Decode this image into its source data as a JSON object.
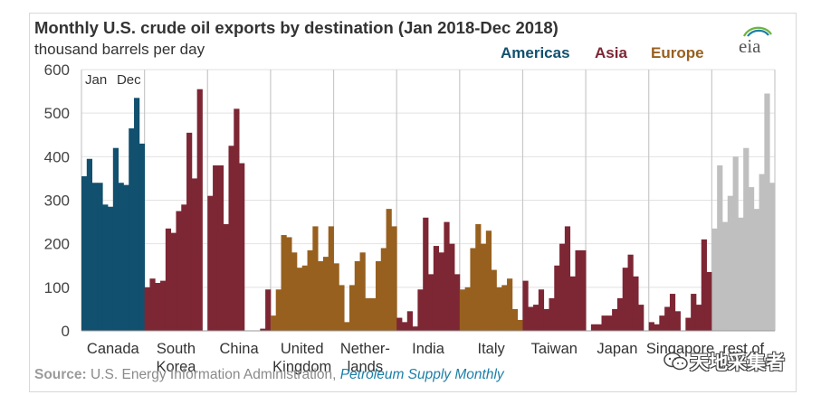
{
  "chart_data": {
    "type": "bar",
    "title": "Monthly U.S. crude oil exports by destination (Jan 2018-Dec 2018)",
    "ylabel": "thousand barrels per day",
    "ylim": [
      0,
      600
    ],
    "yticks": [
      0,
      100,
      200,
      300,
      400,
      500,
      600
    ],
    "month_labels": [
      "Jan",
      "Dec"
    ],
    "regions": [
      {
        "name": "Americas",
        "color": "#11506e"
      },
      {
        "name": "Asia",
        "color": "#7d2634"
      },
      {
        "name": "Europe",
        "color": "#97601f"
      }
    ],
    "series": [
      {
        "name": "Canada",
        "label_lines": [
          "Canada"
        ],
        "region": "Americas",
        "color": "#11506e",
        "values": [
          355,
          395,
          340,
          340,
          290,
          285,
          420,
          340,
          335,
          465,
          535,
          430
        ]
      },
      {
        "name": "South Korea",
        "label_lines": [
          "South",
          "Korea"
        ],
        "region": "Asia",
        "color": "#7d2634",
        "values": [
          100,
          120,
          110,
          115,
          235,
          225,
          275,
          290,
          455,
          350,
          555,
          0
        ]
      },
      {
        "name": "China",
        "label_lines": [
          "China"
        ],
        "region": "Asia",
        "color": "#7d2634",
        "values": [
          310,
          380,
          380,
          245,
          425,
          510,
          385,
          0,
          0,
          0,
          5,
          95
        ]
      },
      {
        "name": "United Kingdom",
        "label_lines": [
          "United",
          "Kingdom"
        ],
        "region": "Europe",
        "color": "#97601f",
        "values": [
          35,
          95,
          220,
          215,
          180,
          145,
          150,
          185,
          240,
          160,
          170,
          240
        ]
      },
      {
        "name": "Netherlands",
        "label_lines": [
          "Nether-",
          "lands"
        ],
        "region": "Europe",
        "color": "#97601f",
        "values": [
          155,
          105,
          20,
          105,
          160,
          180,
          75,
          75,
          160,
          190,
          280,
          240
        ]
      },
      {
        "name": "India",
        "label_lines": [
          "India"
        ],
        "region": "Asia",
        "color": "#7d2634",
        "values": [
          30,
          20,
          45,
          10,
          95,
          260,
          130,
          195,
          180,
          250,
          200,
          130
        ]
      },
      {
        "name": "Italy",
        "label_lines": [
          "Italy"
        ],
        "region": "Europe",
        "color": "#97601f",
        "values": [
          95,
          100,
          190,
          245,
          200,
          230,
          140,
          100,
          105,
          120,
          50,
          25
        ]
      },
      {
        "name": "Taiwan",
        "label_lines": [
          "Taiwan"
        ],
        "region": "Asia",
        "color": "#7d2634",
        "values": [
          115,
          55,
          60,
          95,
          50,
          75,
          150,
          200,
          240,
          125,
          185,
          185
        ]
      },
      {
        "name": "Japan",
        "label_lines": [
          "Japan"
        ],
        "region": "Asia",
        "color": "#7d2634",
        "values": [
          0,
          15,
          15,
          35,
          35,
          50,
          75,
          145,
          175,
          125,
          60,
          0
        ]
      },
      {
        "name": "Singapore",
        "label_lines": [
          "Singapore"
        ],
        "region": "Asia",
        "color": "#7d2634",
        "values": [
          20,
          15,
          35,
          55,
          85,
          45,
          0,
          30,
          85,
          60,
          210,
          135
        ]
      },
      {
        "name": "rest of world",
        "label_lines": [
          "rest of"
        ],
        "region": "",
        "color": "#bfbfbf",
        "values": [
          235,
          380,
          250,
          310,
          400,
          260,
          420,
          330,
          280,
          360,
          545,
          340
        ]
      }
    ]
  },
  "header": {
    "title": "Monthly U.S. crude oil exports by destination (Jan 2018-Dec 2018)",
    "subtitle": "thousand barrels per day",
    "region_labels": [
      "Americas",
      "Asia",
      "Europe"
    ]
  },
  "logo": {
    "text": "eia"
  },
  "footer": {
    "source_label": "Source:",
    "source_text": "U.S. Energy Information Administration,",
    "source_pub": "Petroleum Supply Monthly"
  },
  "watermark": {
    "text": "天地采集者"
  }
}
